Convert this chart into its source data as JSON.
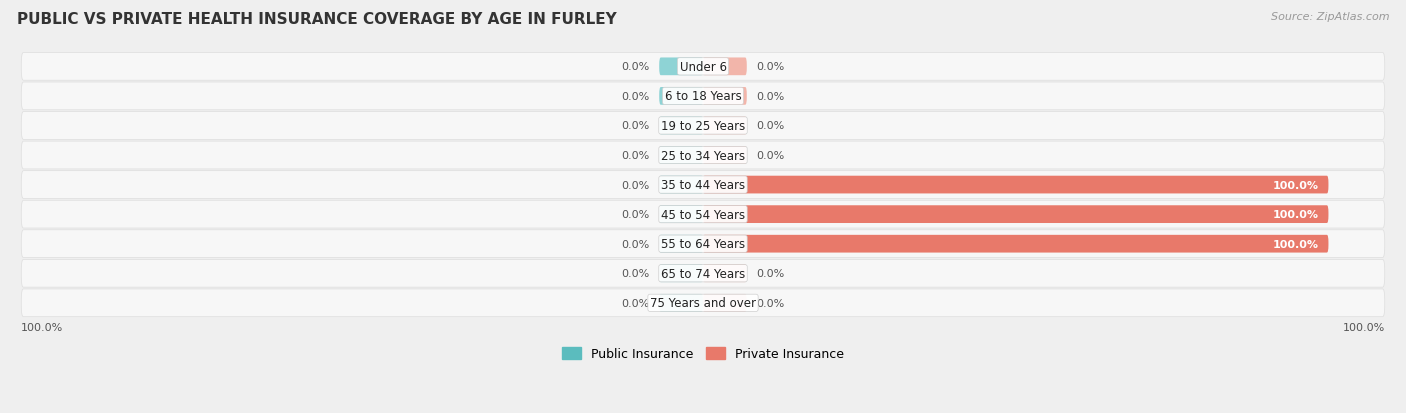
{
  "title": "PUBLIC VS PRIVATE HEALTH INSURANCE COVERAGE BY AGE IN FURLEY",
  "source": "Source: ZipAtlas.com",
  "categories": [
    "Under 6",
    "6 to 18 Years",
    "19 to 25 Years",
    "25 to 34 Years",
    "35 to 44 Years",
    "45 to 54 Years",
    "55 to 64 Years",
    "65 to 74 Years",
    "75 Years and over"
  ],
  "public_values": [
    0.0,
    0.0,
    0.0,
    0.0,
    0.0,
    0.0,
    0.0,
    0.0,
    0.0
  ],
  "private_values": [
    0.0,
    0.0,
    0.0,
    0.0,
    100.0,
    100.0,
    100.0,
    0.0,
    0.0
  ],
  "public_color": "#5bbcbe",
  "private_color": "#e8796a",
  "public_stub_color": "#8ed3d5",
  "private_stub_color": "#f2b5aa",
  "bg_color": "#efefef",
  "row_bg_color": "#f7f7f7",
  "title_fontsize": 11,
  "source_fontsize": 8,
  "label_fontsize": 8,
  "legend_fontsize": 9,
  "category_fontsize": 8.5,
  "xlim": 110,
  "stub_size": 7,
  "bar_height": 0.6,
  "row_padding": 0.47,
  "axis_label_left": "100.0%",
  "axis_label_right": "100.0%"
}
